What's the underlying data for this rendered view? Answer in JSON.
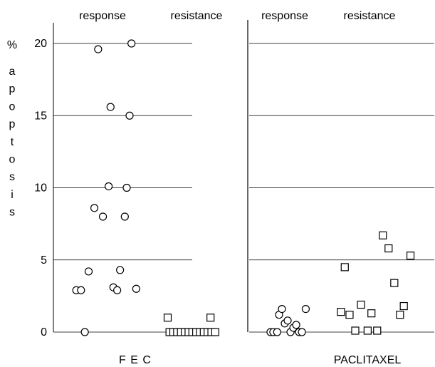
{
  "chart_data": {
    "type": "scatter",
    "title": "",
    "ylabel": "% apoptosis",
    "ylabel_letters": [
      "%",
      "a",
      "p",
      "o",
      "p",
      "t",
      "o",
      "s",
      "i",
      "s"
    ],
    "ylim": [
      0,
      20
    ],
    "yticks": [
      "0",
      "5",
      "10",
      "15",
      "20"
    ],
    "grid": true,
    "column_headers": [
      "response",
      "resistance",
      "response",
      "resistance"
    ],
    "groups": [
      "F E C",
      "PACLITAXEL"
    ],
    "series": [
      {
        "name": "response",
        "group": "F E C",
        "marker": "circle",
        "points": [
          {
            "x": 0.47,
            "y": 19.6
          },
          {
            "x": 0.82,
            "y": 20.0
          },
          {
            "x": 0.6,
            "y": 15.6
          },
          {
            "x": 0.8,
            "y": 15.0
          },
          {
            "x": 0.58,
            "y": 10.1
          },
          {
            "x": 0.77,
            "y": 10.0
          },
          {
            "x": 0.43,
            "y": 8.6
          },
          {
            "x": 0.52,
            "y": 8.0
          },
          {
            "x": 0.75,
            "y": 8.0
          },
          {
            "x": 0.37,
            "y": 4.2
          },
          {
            "x": 0.7,
            "y": 4.3
          },
          {
            "x": 0.24,
            "y": 2.9
          },
          {
            "x": 0.29,
            "y": 2.9
          },
          {
            "x": 0.63,
            "y": 3.1
          },
          {
            "x": 0.67,
            "y": 2.9
          },
          {
            "x": 0.87,
            "y": 3.0
          },
          {
            "x": 0.33,
            "y": 0.0
          }
        ]
      },
      {
        "name": "resistance",
        "group": "F E C",
        "marker": "square",
        "points": [
          {
            "x": 1.2,
            "y": 1.0
          },
          {
            "x": 1.65,
            "y": 1.0
          },
          {
            "x": 1.22,
            "y": 0.0
          },
          {
            "x": 1.26,
            "y": 0.0
          },
          {
            "x": 1.3,
            "y": 0.0
          },
          {
            "x": 1.34,
            "y": 0.0
          },
          {
            "x": 1.38,
            "y": 0.0
          },
          {
            "x": 1.42,
            "y": 0.0
          },
          {
            "x": 1.46,
            "y": 0.0
          },
          {
            "x": 1.5,
            "y": 0.0
          },
          {
            "x": 1.54,
            "y": 0.0
          },
          {
            "x": 1.58,
            "y": 0.0
          },
          {
            "x": 1.62,
            "y": 0.0
          },
          {
            "x": 1.66,
            "y": 0.0
          },
          {
            "x": 1.7,
            "y": 0.0
          }
        ]
      },
      {
        "name": "response",
        "group": "PACLITAXEL",
        "marker": "circle",
        "points": [
          {
            "x": 2.28,
            "y": 0.0
          },
          {
            "x": 2.31,
            "y": 0.0
          },
          {
            "x": 2.35,
            "y": 0.0
          },
          {
            "x": 2.37,
            "y": 1.2
          },
          {
            "x": 2.4,
            "y": 1.6
          },
          {
            "x": 2.43,
            "y": 0.6
          },
          {
            "x": 2.46,
            "y": 0.8
          },
          {
            "x": 2.49,
            "y": 0.0
          },
          {
            "x": 2.52,
            "y": 0.3
          },
          {
            "x": 2.55,
            "y": 0.5
          },
          {
            "x": 2.58,
            "y": 0.0
          },
          {
            "x": 2.61,
            "y": 0.0
          },
          {
            "x": 2.65,
            "y": 1.6
          }
        ]
      },
      {
        "name": "resistance",
        "group": "PACLITAXEL",
        "marker": "square",
        "points": [
          {
            "x": 3.06,
            "y": 4.5
          },
          {
            "x": 3.02,
            "y": 1.4
          },
          {
            "x": 3.11,
            "y": 1.2
          },
          {
            "x": 3.17,
            "y": 0.1
          },
          {
            "x": 3.23,
            "y": 1.9
          },
          {
            "x": 3.3,
            "y": 0.1
          },
          {
            "x": 3.34,
            "y": 1.3
          },
          {
            "x": 3.4,
            "y": 0.1
          },
          {
            "x": 3.46,
            "y": 6.7
          },
          {
            "x": 3.52,
            "y": 5.8
          },
          {
            "x": 3.58,
            "y": 3.4
          },
          {
            "x": 3.64,
            "y": 1.2
          },
          {
            "x": 3.68,
            "y": 1.8
          },
          {
            "x": 3.75,
            "y": 5.3
          }
        ]
      }
    ]
  }
}
